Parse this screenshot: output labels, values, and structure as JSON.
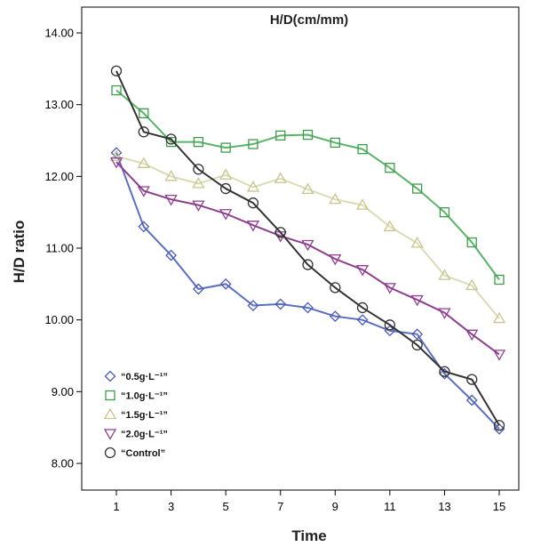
{
  "chart_data": {
    "type": "line",
    "title": "H/D(cm/mm)",
    "xlabel": "Time",
    "ylabel": "H/D ratio",
    "xlim": [
      0,
      16
    ],
    "ylim": [
      7.9,
      14.2
    ],
    "x_ticks": [
      1,
      3,
      5,
      7,
      9,
      11,
      13,
      15
    ],
    "y_ticks": [
      8.0,
      9.0,
      10.0,
      11.0,
      12.0,
      13.0,
      14.0
    ],
    "y_tick_labels": [
      "8.00",
      "9.00",
      "10.00",
      "11.00",
      "12.00",
      "13.00",
      "14.00"
    ],
    "x": [
      1,
      2,
      3,
      4,
      5,
      6,
      7,
      8,
      9,
      10,
      11,
      12,
      13,
      14,
      15
    ],
    "grid": false,
    "legend_position": "bottom-left",
    "series": [
      {
        "name": "“0.5g·L⁻¹”",
        "color": "#5b6fc0",
        "marker": "diamond",
        "marker_color": "#4a5bb5",
        "values": [
          12.33,
          11.3,
          10.9,
          10.43,
          10.5,
          10.2,
          10.22,
          10.17,
          10.05,
          10.0,
          9.85,
          9.8,
          9.25,
          8.88,
          8.48
        ]
      },
      {
        "name": "“1.0g·L⁻¹”",
        "color": "#58b565",
        "marker": "square",
        "marker_color": "#3f9a4d",
        "values": [
          13.2,
          12.88,
          12.48,
          12.48,
          12.4,
          12.45,
          12.57,
          12.58,
          12.47,
          12.38,
          12.12,
          11.83,
          11.5,
          11.08,
          10.56
        ]
      },
      {
        "name": "“1.5g·L⁻¹”",
        "color": "#dcdbb7",
        "marker": "triangle",
        "marker_color": "#c9c48a",
        "values": [
          12.28,
          12.18,
          12.0,
          11.9,
          12.02,
          11.85,
          11.97,
          11.82,
          11.68,
          11.6,
          11.3,
          11.07,
          10.62,
          10.48,
          10.02
        ]
      },
      {
        "name": "“2.0g·L⁻¹”",
        "color": "#8e3f8f",
        "marker": "triangle-down",
        "marker_color": "#8e3f8f",
        "values": [
          12.2,
          11.8,
          11.68,
          11.6,
          11.48,
          11.32,
          11.17,
          11.05,
          10.85,
          10.7,
          10.45,
          10.28,
          10.1,
          9.8,
          9.52
        ]
      },
      {
        "name": "“Control”",
        "color": "#333333",
        "marker": "circle",
        "marker_color": "#333333",
        "values": [
          13.47,
          12.62,
          12.52,
          12.1,
          11.83,
          11.63,
          11.22,
          10.77,
          10.45,
          10.17,
          9.93,
          9.65,
          9.28,
          9.17,
          8.53
        ]
      }
    ]
  }
}
